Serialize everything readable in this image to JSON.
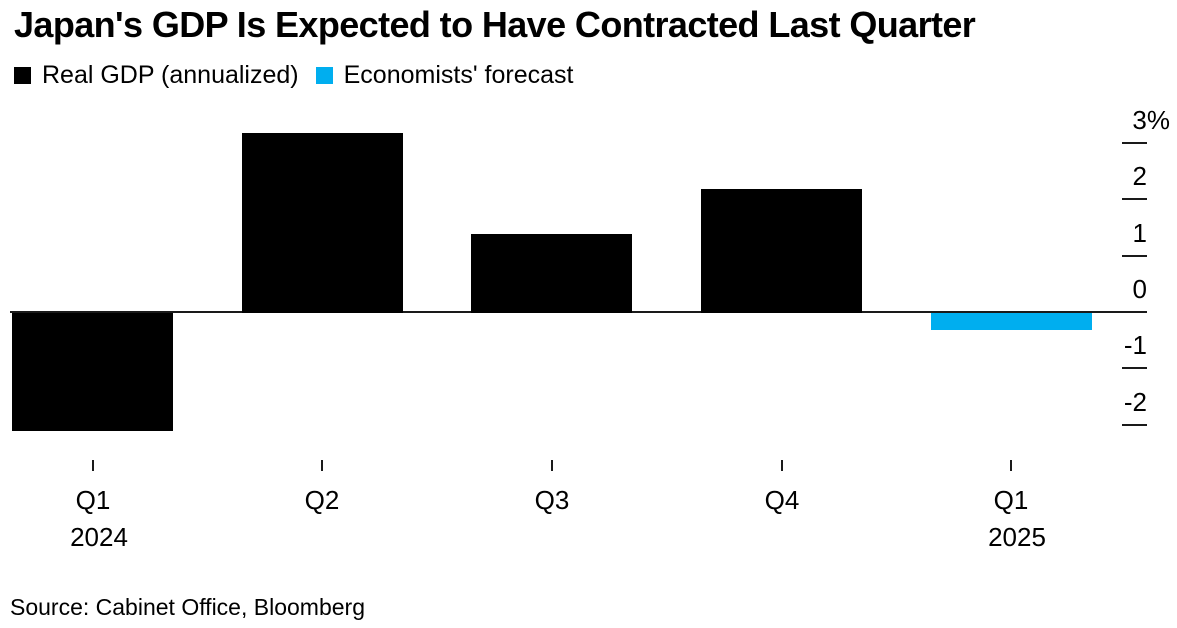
{
  "header": {
    "title": "Japan's GDP Is Expected to Have Contracted Last Quarter"
  },
  "source": {
    "text": "Source: Cabinet Office, Bloomberg"
  },
  "colors": {
    "actual": "#000000",
    "forecast": "#00AEEF",
    "axis": "#1a1a1a",
    "background": "#ffffff"
  },
  "chart_data": {
    "type": "bar",
    "title": "Japan's GDP Is Expected to Have Contracted Last Quarter",
    "categories": [
      {
        "label": "Q1",
        "sublabel": "2024"
      },
      {
        "label": "Q2",
        "sublabel": ""
      },
      {
        "label": "Q3",
        "sublabel": ""
      },
      {
        "label": "Q4",
        "sublabel": ""
      },
      {
        "label": "Q1",
        "sublabel": "2025"
      }
    ],
    "series": [
      {
        "name": "Real GDP (annualized)",
        "color": "#000000",
        "values": [
          -2.1,
          3.2,
          1.4,
          2.2,
          null
        ]
      },
      {
        "name": "Economists' forecast",
        "color": "#00AEEF",
        "values": [
          null,
          null,
          null,
          null,
          -0.3
        ]
      }
    ],
    "ylabel": "%",
    "ylim": [
      -2.5,
      3.3
    ],
    "yticks": [
      {
        "value": 3,
        "label": "3%"
      },
      {
        "value": 2,
        "label": "2"
      },
      {
        "value": 1,
        "label": "1"
      },
      {
        "value": 0,
        "label": "0"
      },
      {
        "value": -1,
        "label": "-1"
      },
      {
        "value": -2,
        "label": "-2"
      }
    ],
    "grid": false,
    "legend_position": "top-left",
    "baseline": 0
  }
}
